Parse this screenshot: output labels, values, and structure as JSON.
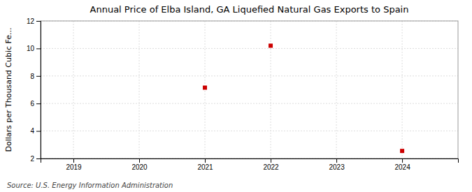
{
  "chart_data": {
    "type": "scatter",
    "title": "Annual Price of Elba Island, GA Liquefied Natural Gas Exports to Spain",
    "ylabel": "Dollars per Thousand Cubic Fe...",
    "annotations": [
      "Source: U.S. Energy Information Administration"
    ],
    "x": [
      2021,
      2022,
      2024
    ],
    "values": [
      7.15,
      10.2,
      2.55
    ],
    "color": "#cc0000",
    "marker": "square",
    "xlim": [
      2018.5,
      2024.85
    ],
    "ylim": [
      2,
      12
    ],
    "xticks": [
      2019,
      2020,
      2021,
      2022,
      2023,
      2024
    ],
    "yticks": [
      2,
      4,
      6,
      8,
      10,
      12
    ],
    "grid": true
  }
}
